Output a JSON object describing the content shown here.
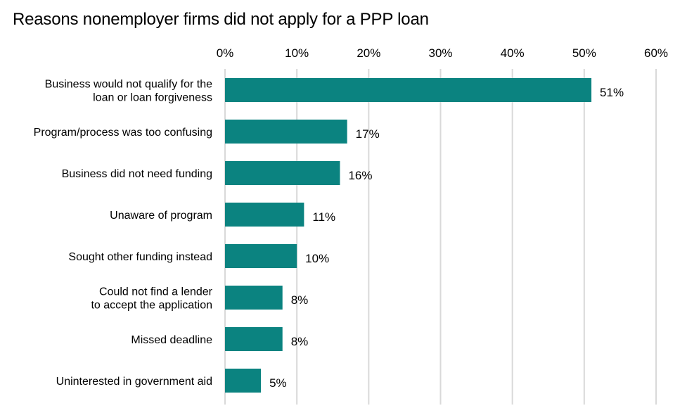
{
  "chart_data": {
    "type": "bar",
    "orientation": "horizontal",
    "title": "Reasons nonemployer firms did not apply for a PPP loan",
    "xlabel": "",
    "ylabel": "",
    "xlim": [
      0,
      60
    ],
    "x_ticks": [
      "0%",
      "10%",
      "20%",
      "30%",
      "40%",
      "50%",
      "60%"
    ],
    "x_tick_values": [
      0,
      10,
      20,
      30,
      40,
      50,
      60
    ],
    "grid": true,
    "legend": "none",
    "bar_color": "#0b8380",
    "categories": [
      [
        "Business would not qualify for the",
        "loan or loan forgiveness"
      ],
      [
        "Program/process was too confusing"
      ],
      [
        "Business did not need funding"
      ],
      [
        "Unaware of program"
      ],
      [
        "Sought other funding instead"
      ],
      [
        "Could not find a lender",
        "to accept the application"
      ],
      [
        "Missed deadline"
      ],
      [
        "Uninterested in government aid"
      ]
    ],
    "values": [
      51,
      17,
      16,
      11,
      10,
      8,
      8,
      5
    ],
    "value_labels": [
      "51%",
      "17%",
      "16%",
      "11%",
      "10%",
      "8%",
      "8%",
      "5%"
    ]
  }
}
